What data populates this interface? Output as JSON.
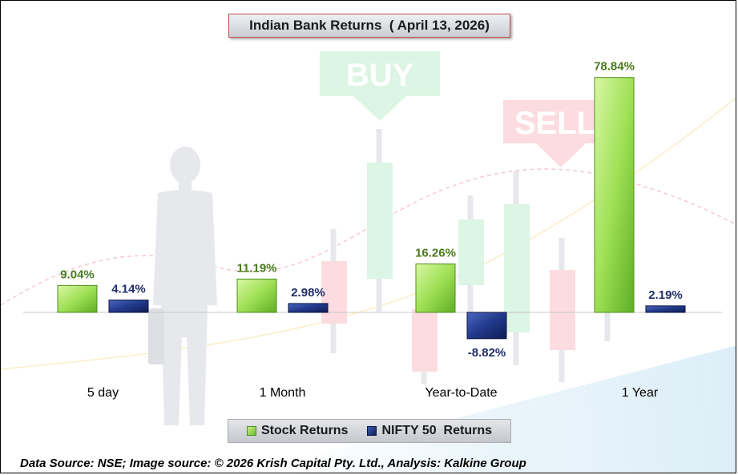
{
  "chart_data": {
    "type": "bar",
    "title": "Indian Bank Returns  ( April 13, 2026)",
    "categories": [
      "5 day",
      "1 Month",
      "Year-to-Date",
      "1 Year"
    ],
    "series": [
      {
        "name": "Stock Returns",
        "values": [
          9.04,
          11.19,
          16.26,
          78.84
        ],
        "labels": [
          "9.04%",
          "11.19%",
          "16.26%",
          "78.84%"
        ],
        "color": "#8fd84a"
      },
      {
        "name": "NIFTY 50  Returns",
        "values": [
          4.14,
          2.98,
          -8.82,
          2.19
        ],
        "labels": [
          "4.14%",
          "2.98%",
          "-8.82%",
          "2.19%"
        ],
        "color": "#1f3a8a"
      }
    ],
    "ylim": [
      -20,
      80
    ],
    "grid": false,
    "legend_position": "bottom"
  },
  "background": {
    "buy_sign": "BUY",
    "sell_sign": "SELL"
  },
  "footer": "Data Source: NSE; Image source: © 2026 Krish Capital Pty. Ltd., Analysis: Kalkine Group",
  "colors": {
    "stock_label": "#4a7a1c",
    "nifty_label": "#1f2e6b",
    "frame_border": "#000000",
    "title_border": "#c0504d"
  }
}
